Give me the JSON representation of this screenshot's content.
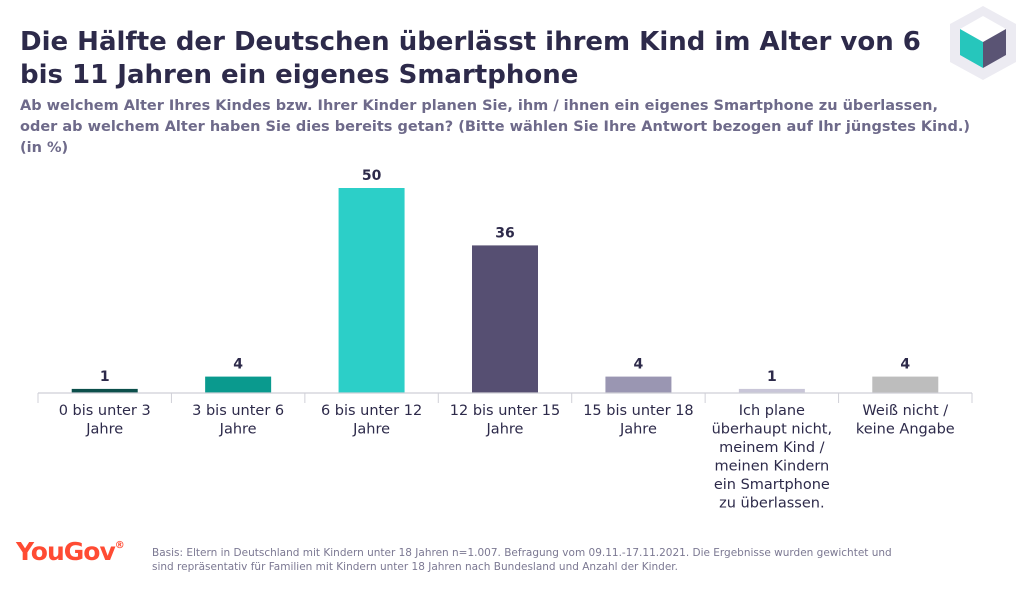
{
  "header": {
    "title": "Die Hälfte der Deutschen überlässt ihrem Kind im Alter von 6 bis 11 Jahren ein eigenes Smartphone",
    "subtitle": "Ab welchem Alter Ihres Kindes bzw. Ihrer Kinder planen Sie, ihm / ihnen ein eigenes Smartphone zu überlassen, oder ab welchem Alter haben Sie dies bereits getan? (Bitte wählen Sie Ihre Antwort bezogen auf Ihr jüngstes Kind.) (in %)"
  },
  "logo": {
    "icon": "cube-icon"
  },
  "footer": {
    "brand": "YouGov",
    "brand_mark": "®",
    "note": "Basis: Eltern in Deutschland mit Kindern unter 18 Jahren n=1.007. Befragung vom 09.11.-17.11.2021. Die Ergebnisse wurden gewichtet und sind repräsentativ für Familien mit Kindern unter 18 Jahren nach Bundesland und Anzahl der Kinder."
  },
  "chart_data": {
    "type": "bar",
    "categories": [
      [
        "0 bis unter 3",
        "Jahre"
      ],
      [
        "3 bis unter 6",
        "Jahre"
      ],
      [
        "6 bis unter 12",
        "Jahre"
      ],
      [
        "12 bis unter 15",
        "Jahre"
      ],
      [
        "15 bis unter 18",
        "Jahre"
      ],
      [
        "Ich plane",
        "überhaupt nicht,",
        "meinem Kind /",
        "meinen Kindern",
        "ein Smartphone",
        "zu überlassen."
      ],
      [
        "Weiß nicht /",
        "keine Angabe"
      ]
    ],
    "values": [
      1,
      4,
      50,
      36,
      4,
      1,
      4
    ],
    "colors": [
      "#0c4f4b",
      "#0a9a8e",
      "#2ccfc8",
      "#564f72",
      "#9a96b2",
      "#c9c6d8",
      "#bdbdbd"
    ],
    "ylim": [
      0,
      50
    ],
    "grid": false,
    "legend": "none"
  }
}
